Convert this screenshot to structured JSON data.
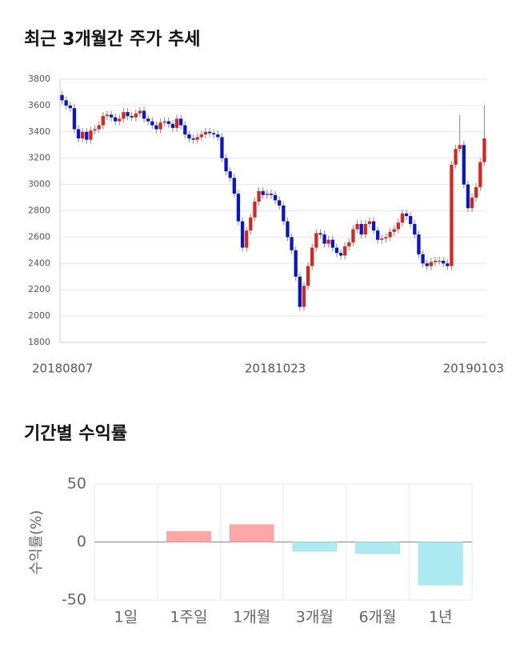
{
  "chart_data": [
    {
      "type": "candlestick",
      "title": "최근 3개월간 주가 추세",
      "categories": [
        "20180807",
        null,
        null,
        null,
        null,
        null,
        null,
        null,
        null,
        null,
        null,
        null,
        null,
        null,
        null,
        null,
        null,
        null,
        null,
        null,
        null,
        null,
        null,
        null,
        null,
        null,
        null,
        null,
        null,
        null,
        null,
        null,
        null,
        null,
        null,
        null,
        null,
        null,
        null,
        null,
        null,
        null,
        null,
        null,
        null,
        null,
        null,
        null,
        null,
        null,
        null,
        null,
        "20181023",
        null,
        null,
        null,
        null,
        null,
        null,
        null,
        null,
        null,
        null,
        null,
        null,
        null,
        null,
        null,
        null,
        null,
        null,
        null,
        null,
        null,
        null,
        null,
        null,
        null,
        null,
        null,
        null,
        null,
        null,
        null,
        null,
        null,
        null,
        null,
        null,
        null,
        null,
        null,
        null,
        null,
        null,
        null,
        null,
        null,
        null,
        null,
        null,
        null,
        null,
        "20190103"
      ],
      "open": [
        3680,
        3640,
        3600,
        3580,
        3420,
        3350,
        3400,
        3340,
        3410,
        3420,
        3450,
        3520,
        3530,
        3510,
        3480,
        3500,
        3550,
        3520,
        3510,
        3540,
        3560,
        3500,
        3480,
        3450,
        3420,
        3470,
        3480,
        3460,
        3430,
        3500,
        3450,
        3380,
        3350,
        3340,
        3360,
        3380,
        3400,
        3390,
        3380,
        3360,
        3200,
        3100,
        3050,
        2930,
        2720,
        2520,
        2650,
        2750,
        2870,
        2950,
        2920,
        2930,
        2920,
        2880,
        2840,
        2720,
        2600,
        2500,
        2300,
        2070,
        2230,
        2380,
        2520,
        2630,
        2620,
        2550,
        2580,
        2520,
        2480,
        2460,
        2530,
        2560,
        2660,
        2700,
        2620,
        2700,
        2720,
        2650,
        2580,
        2590,
        2600,
        2640,
        2660,
        2710,
        2780,
        2760,
        2700,
        2620,
        2470,
        2400,
        2380,
        2410,
        2420,
        2420,
        2400,
        2380,
        3150,
        3270,
        3300,
        3000,
        2820,
        2900,
        2980,
        3170
      ],
      "high": [
        3710,
        3670,
        3630,
        3610,
        3450,
        3430,
        3430,
        3440,
        3450,
        3480,
        3550,
        3560,
        3560,
        3540,
        3530,
        3580,
        3580,
        3550,
        3570,
        3590,
        3590,
        3530,
        3510,
        3480,
        3500,
        3510,
        3510,
        3490,
        3530,
        3530,
        3480,
        3410,
        3380,
        3390,
        3410,
        3430,
        3430,
        3420,
        3410,
        3390,
        3230,
        3130,
        3080,
        2960,
        2750,
        2680,
        2780,
        2900,
        2980,
        2980,
        2960,
        2960,
        2950,
        2910,
        2870,
        2750,
        2630,
        2530,
        2330,
        2260,
        2410,
        2550,
        2660,
        2660,
        2650,
        2610,
        2610,
        2550,
        2510,
        2560,
        2590,
        2690,
        2730,
        2730,
        2730,
        2750,
        2750,
        2680,
        2620,
        2630,
        2670,
        2690,
        2740,
        2810,
        2810,
        2790,
        2730,
        2650,
        2500,
        2430,
        2440,
        2450,
        2450,
        2450,
        2430,
        3180,
        3300,
        3530,
        3330,
        3030,
        2930,
        3010,
        3200,
        3600
      ],
      "low": [
        3610,
        3570,
        3550,
        3390,
        3320,
        3320,
        3310,
        3310,
        3380,
        3390,
        3420,
        3490,
        3480,
        3450,
        3450,
        3470,
        3490,
        3480,
        3480,
        3510,
        3470,
        3450,
        3420,
        3390,
        3390,
        3440,
        3430,
        3400,
        3400,
        3420,
        3350,
        3320,
        3310,
        3310,
        3330,
        3350,
        3360,
        3350,
        3330,
        3170,
        3070,
        3020,
        2900,
        2690,
        2490,
        2490,
        2620,
        2720,
        2840,
        2890,
        2890,
        2890,
        2850,
        2810,
        2690,
        2570,
        2470,
        2270,
        2040,
        2040,
        2200,
        2350,
        2490,
        2590,
        2520,
        2520,
        2490,
        2450,
        2430,
        2430,
        2500,
        2530,
        2630,
        2590,
        2590,
        2670,
        2620,
        2550,
        2550,
        2560,
        2570,
        2610,
        2630,
        2680,
        2730,
        2670,
        2590,
        2440,
        2370,
        2350,
        2350,
        2380,
        2390,
        2370,
        2350,
        2350,
        3120,
        3240,
        2970,
        2790,
        2790,
        2870,
        2950,
        3140
      ],
      "close": [
        3640,
        3600,
        3580,
        3420,
        3350,
        3400,
        3340,
        3410,
        3420,
        3450,
        3520,
        3530,
        3510,
        3480,
        3500,
        3550,
        3520,
        3510,
        3540,
        3560,
        3500,
        3480,
        3450,
        3420,
        3470,
        3480,
        3460,
        3430,
        3500,
        3450,
        3380,
        3350,
        3340,
        3360,
        3380,
        3400,
        3390,
        3380,
        3360,
        3200,
        3100,
        3050,
        2930,
        2720,
        2520,
        2650,
        2750,
        2870,
        2950,
        2920,
        2930,
        2920,
        2880,
        2840,
        2720,
        2600,
        2500,
        2300,
        2070,
        2230,
        2380,
        2520,
        2630,
        2620,
        2550,
        2580,
        2520,
        2480,
        2460,
        2530,
        2560,
        2660,
        2700,
        2620,
        2700,
        2720,
        2650,
        2580,
        2590,
        2600,
        2640,
        2660,
        2710,
        2780,
        2760,
        2700,
        2620,
        2470,
        2400,
        2380,
        2410,
        2420,
        2420,
        2400,
        2380,
        3150,
        3270,
        3300,
        3000,
        2820,
        2900,
        2980,
        3170,
        3350
      ],
      "up_color": "#d7261e",
      "down_color": "#0a14c8",
      "ylim": [
        1800,
        3800
      ],
      "yticks": [
        1800,
        2000,
        2200,
        2400,
        2600,
        2800,
        3000,
        3200,
        3400,
        3600,
        3800
      ],
      "grid": true
    },
    {
      "type": "bar",
      "title": "기간별 수익률",
      "y_label": "수익률(%)",
      "categories": [
        "1일",
        "1주일",
        "1개월",
        "3개월",
        "6개월",
        "1년"
      ],
      "values": [
        0,
        9,
        15,
        -8,
        -10,
        -37
      ],
      "positive_color": "#ffa6a6",
      "negative_color": "#aeeaf2",
      "ylim": [
        -50,
        50
      ],
      "yticks": [
        -50,
        0,
        50
      ],
      "grid": true
    }
  ]
}
